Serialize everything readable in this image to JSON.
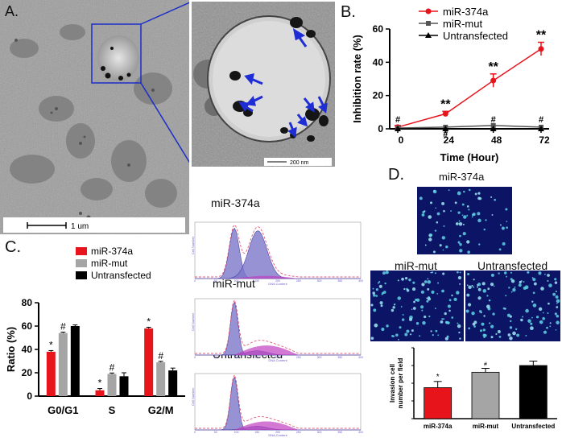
{
  "panels": {
    "a_label": "A.",
    "b_label": "B.",
    "c_label": "C.",
    "d_label": "D."
  },
  "panel_a": {
    "scale_main": "1 um",
    "scale_inset": "200 nm"
  },
  "panel_flow": {
    "titles": [
      "miR-374a",
      "miR-mut",
      "Untransfected"
    ],
    "axis_y": "Cell Number",
    "axis_x": "DNA Content",
    "ticks": [
      "0",
      "50",
      "100",
      "150",
      "200",
      "250",
      "300",
      "350",
      "400"
    ]
  },
  "panel_d": {
    "img_titles": [
      "miR-374a",
      "miR-mut",
      "Untransfected"
    ]
  },
  "colors": {
    "red": "#e8141c",
    "gray": "#a5a5a5",
    "black": "#000000",
    "blue_marker": "#1e2dd6",
    "flow_fill": "#7c77c9"
  },
  "chart_data": [
    {
      "type": "line",
      "title": "",
      "xlabel": "Time (Hour)",
      "ylabel": "Inhibition rate (%)",
      "x": [
        0,
        24,
        48,
        72
      ],
      "ylim": [
        0,
        60
      ],
      "yticks": [
        0,
        20,
        40,
        60
      ],
      "legend_position": "top",
      "series": [
        {
          "name": "miR-374a",
          "values": [
            1,
            9,
            29,
            48
          ],
          "errors": [
            1,
            1.5,
            4,
            4
          ],
          "color": "#e8141c",
          "marker": "circle"
        },
        {
          "name": "miR-mut",
          "values": [
            0.5,
            1,
            2,
            1
          ],
          "color": "#555555",
          "marker": "square"
        },
        {
          "name": "Untransfected",
          "values": [
            0,
            0,
            0,
            0
          ],
          "color": "#000000",
          "marker": "triangle"
        }
      ],
      "annotations": [
        {
          "x": 24,
          "text": "**"
        },
        {
          "x": 48,
          "text": "**"
        },
        {
          "x": 72,
          "text": "**"
        },
        {
          "x": 0,
          "text": "#"
        },
        {
          "x": 24,
          "text": "#"
        },
        {
          "x": 48,
          "text": "#"
        },
        {
          "x": 72,
          "text": "#"
        }
      ]
    },
    {
      "type": "bar",
      "title": "",
      "xlabel": "",
      "ylabel": "Ratio (%)",
      "categories": [
        "G0/G1",
        "S",
        "G2/M"
      ],
      "ylim": [
        0,
        80
      ],
      "yticks": [
        0,
        20,
        40,
        60,
        80
      ],
      "legend_position": "top",
      "series": [
        {
          "name": "miR-374a",
          "values": [
            38,
            5,
            58
          ],
          "errors": [
            1,
            1.5,
            1
          ],
          "color": "#e8141c"
        },
        {
          "name": "miR-mut",
          "values": [
            54,
            19,
            29
          ],
          "errors": [
            0.8,
            0.8,
            0.8
          ],
          "color": "#a5a5a5"
        },
        {
          "name": "Untransfected",
          "values": [
            60,
            17,
            22
          ],
          "errors": [
            1,
            3,
            2
          ],
          "color": "#000000"
        }
      ],
      "annotations": [
        {
          "category": "G0/G1",
          "series": "miR-374a",
          "text": "*"
        },
        {
          "category": "G0/G1",
          "series": "miR-mut",
          "text": "#"
        },
        {
          "category": "S",
          "series": "miR-374a",
          "text": "*"
        },
        {
          "category": "S",
          "series": "miR-mut",
          "text": "#"
        },
        {
          "category": "G2/M",
          "series": "miR-374a",
          "text": "*"
        },
        {
          "category": "G2/M",
          "series": "miR-mut",
          "text": "#"
        }
      ]
    },
    {
      "type": "bar",
      "title": "",
      "xlabel": "",
      "ylabel": "Invasion cell number per field",
      "categories": [
        "miR-374a",
        "miR-mut",
        "Untransfected"
      ],
      "values": [
        175,
        262,
        300
      ],
      "errors": [
        35,
        22,
        25
      ],
      "ylim": [
        0,
        400
      ],
      "colors": [
        "#e8141c",
        "#a5a5a5",
        "#000000"
      ],
      "annotations": [
        {
          "category": "miR-374a",
          "text": "*"
        },
        {
          "category": "miR-mut",
          "text": "#"
        }
      ]
    }
  ]
}
